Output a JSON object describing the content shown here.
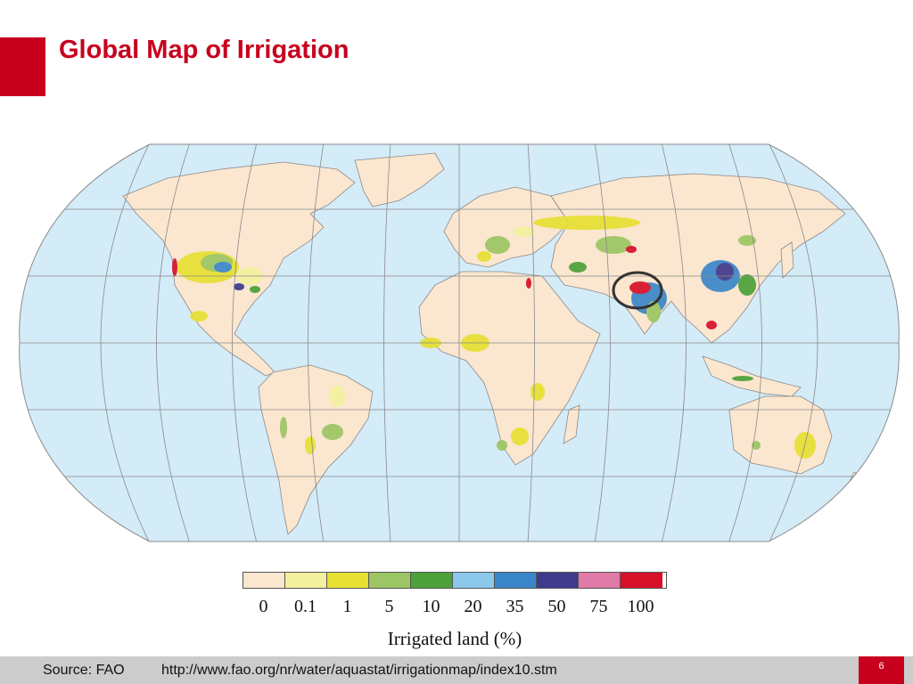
{
  "slide": {
    "title": "Global Map of Irrigation",
    "page_number": "6",
    "accent_color": "#c8001e"
  },
  "map": {
    "projection": "robinson",
    "ocean_color": "#d4ebf8",
    "land_color": "#fbe6cf",
    "highlight_circle": "Indus–Ganges plain"
  },
  "legend": {
    "title": "Irrigated land (%)",
    "ticks": [
      "0",
      "0.1",
      "1",
      "5",
      "10",
      "20",
      "35",
      "50",
      "75",
      "100"
    ],
    "colors": [
      "#fbe6cf",
      "#f3f0a0",
      "#e6e032",
      "#9cc563",
      "#4ca13a",
      "#8cc8ea",
      "#3a86c9",
      "#3f3a8c",
      "#e07aa8",
      "#d8102a"
    ]
  },
  "footer": {
    "source": "Source: FAO",
    "url": "http://www.fao.org/nr/water/aquastat/irrigationmap/index10.stm"
  }
}
